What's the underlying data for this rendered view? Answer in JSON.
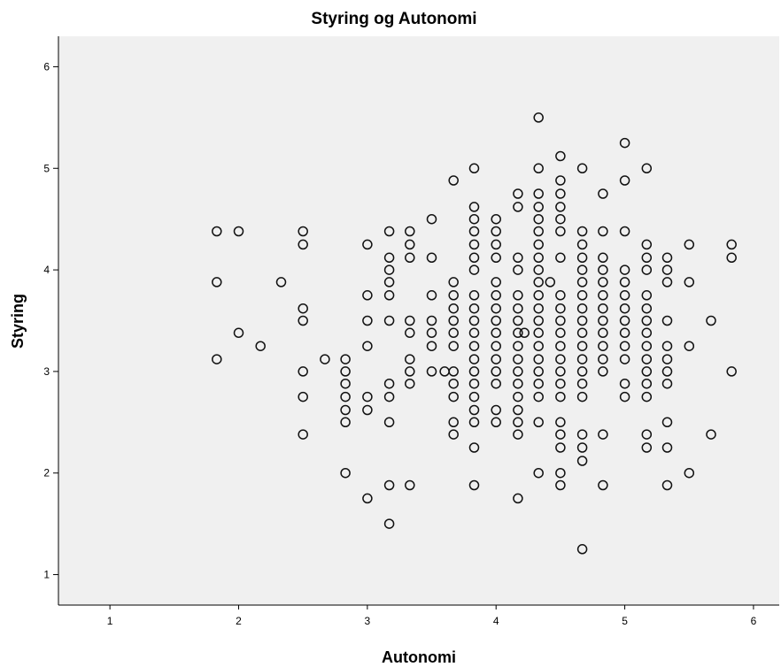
{
  "chart_data": {
    "type": "scatter",
    "title": "Styring og Autonomi",
    "xlabel": "Autonomi",
    "ylabel": "Styring",
    "xlim": [
      0.6,
      6.2
    ],
    "ylim": [
      0.7,
      6.3
    ],
    "xticks": [
      "1",
      "2",
      "3",
      "4",
      "5",
      "6"
    ],
    "yticks": [
      "1",
      "2",
      "3",
      "4",
      "5",
      "6"
    ],
    "grid": false,
    "colors": {
      "plot_bg": "#f0f0f0",
      "marker": "#111111"
    },
    "points": [
      [
        1.83,
        4.38
      ],
      [
        1.83,
        3.88
      ],
      [
        1.83,
        3.12
      ],
      [
        2.0,
        4.38
      ],
      [
        2.0,
        3.38
      ],
      [
        2.17,
        3.25
      ],
      [
        2.33,
        3.88
      ],
      [
        2.5,
        4.38
      ],
      [
        2.5,
        4.25
      ],
      [
        2.5,
        3.62
      ],
      [
        2.5,
        3.5
      ],
      [
        2.5,
        3.0
      ],
      [
        2.5,
        2.75
      ],
      [
        2.5,
        2.38
      ],
      [
        2.67,
        3.12
      ],
      [
        2.83,
        3.12
      ],
      [
        2.83,
        3.0
      ],
      [
        2.83,
        2.88
      ],
      [
        2.83,
        2.75
      ],
      [
        2.83,
        2.62
      ],
      [
        2.83,
        2.5
      ],
      [
        2.83,
        2.0
      ],
      [
        3.0,
        4.25
      ],
      [
        3.0,
        3.75
      ],
      [
        3.0,
        3.5
      ],
      [
        3.0,
        3.25
      ],
      [
        3.0,
        2.75
      ],
      [
        3.0,
        2.62
      ],
      [
        3.0,
        1.75
      ],
      [
        3.17,
        4.38
      ],
      [
        3.17,
        4.12
      ],
      [
        3.17,
        4.0
      ],
      [
        3.17,
        3.88
      ],
      [
        3.17,
        3.75
      ],
      [
        3.17,
        3.5
      ],
      [
        3.17,
        2.88
      ],
      [
        3.17,
        2.75
      ],
      [
        3.17,
        2.5
      ],
      [
        3.17,
        1.88
      ],
      [
        3.17,
        1.5
      ],
      [
        3.33,
        4.38
      ],
      [
        3.33,
        4.25
      ],
      [
        3.33,
        4.12
      ],
      [
        3.33,
        3.5
      ],
      [
        3.33,
        3.38
      ],
      [
        3.33,
        3.12
      ],
      [
        3.33,
        3.0
      ],
      [
        3.33,
        2.88
      ],
      [
        3.33,
        1.88
      ],
      [
        3.5,
        4.5
      ],
      [
        3.5,
        4.12
      ],
      [
        3.5,
        3.75
      ],
      [
        3.5,
        3.5
      ],
      [
        3.5,
        3.38
      ],
      [
        3.5,
        3.25
      ],
      [
        3.5,
        3.0
      ],
      [
        3.6,
        3.0
      ],
      [
        3.67,
        4.88
      ],
      [
        3.67,
        3.88
      ],
      [
        3.67,
        3.75
      ],
      [
        3.67,
        3.62
      ],
      [
        3.67,
        3.5
      ],
      [
        3.67,
        3.38
      ],
      [
        3.67,
        3.25
      ],
      [
        3.67,
        3.0
      ],
      [
        3.67,
        2.88
      ],
      [
        3.67,
        2.75
      ],
      [
        3.67,
        2.5
      ],
      [
        3.67,
        2.38
      ],
      [
        3.83,
        5.0
      ],
      [
        3.83,
        4.62
      ],
      [
        3.83,
        4.5
      ],
      [
        3.83,
        4.38
      ],
      [
        3.83,
        4.25
      ],
      [
        3.83,
        4.12
      ],
      [
        3.83,
        4.0
      ],
      [
        3.83,
        3.75
      ],
      [
        3.83,
        3.62
      ],
      [
        3.83,
        3.5
      ],
      [
        3.83,
        3.38
      ],
      [
        3.83,
        3.25
      ],
      [
        3.83,
        3.12
      ],
      [
        3.83,
        3.0
      ],
      [
        3.83,
        2.88
      ],
      [
        3.83,
        2.75
      ],
      [
        3.83,
        2.62
      ],
      [
        3.83,
        2.5
      ],
      [
        3.83,
        2.25
      ],
      [
        3.83,
        1.88
      ],
      [
        4.0,
        4.5
      ],
      [
        4.0,
        4.38
      ],
      [
        4.0,
        4.25
      ],
      [
        4.0,
        4.12
      ],
      [
        4.0,
        3.88
      ],
      [
        4.0,
        3.75
      ],
      [
        4.0,
        3.62
      ],
      [
        4.0,
        3.5
      ],
      [
        4.0,
        3.38
      ],
      [
        4.0,
        3.25
      ],
      [
        4.0,
        3.12
      ],
      [
        4.0,
        3.0
      ],
      [
        4.0,
        2.88
      ],
      [
        4.0,
        2.62
      ],
      [
        4.0,
        2.5
      ],
      [
        4.17,
        4.75
      ],
      [
        4.17,
        4.62
      ],
      [
        4.17,
        4.12
      ],
      [
        4.17,
        4.0
      ],
      [
        4.17,
        3.75
      ],
      [
        4.17,
        3.62
      ],
      [
        4.17,
        3.5
      ],
      [
        4.17,
        3.38
      ],
      [
        4.17,
        3.25
      ],
      [
        4.17,
        3.12
      ],
      [
        4.17,
        3.0
      ],
      [
        4.17,
        2.88
      ],
      [
        4.17,
        2.75
      ],
      [
        4.17,
        2.62
      ],
      [
        4.17,
        2.5
      ],
      [
        4.17,
        2.38
      ],
      [
        4.17,
        1.75
      ],
      [
        4.22,
        3.38
      ],
      [
        4.33,
        5.5
      ],
      [
        4.33,
        5.0
      ],
      [
        4.33,
        4.75
      ],
      [
        4.33,
        4.62
      ],
      [
        4.33,
        4.5
      ],
      [
        4.33,
        4.38
      ],
      [
        4.33,
        4.25
      ],
      [
        4.33,
        4.12
      ],
      [
        4.33,
        4.0
      ],
      [
        4.33,
        3.88
      ],
      [
        4.33,
        3.75
      ],
      [
        4.33,
        3.62
      ],
      [
        4.33,
        3.5
      ],
      [
        4.33,
        3.38
      ],
      [
        4.33,
        3.25
      ],
      [
        4.33,
        3.12
      ],
      [
        4.33,
        3.0
      ],
      [
        4.33,
        2.88
      ],
      [
        4.33,
        2.75
      ],
      [
        4.33,
        2.5
      ],
      [
        4.33,
        2.0
      ],
      [
        4.42,
        3.88
      ],
      [
        4.5,
        5.12
      ],
      [
        4.5,
        4.88
      ],
      [
        4.5,
        4.75
      ],
      [
        4.5,
        4.62
      ],
      [
        4.5,
        4.5
      ],
      [
        4.5,
        4.38
      ],
      [
        4.5,
        4.12
      ],
      [
        4.5,
        3.75
      ],
      [
        4.5,
        3.62
      ],
      [
        4.5,
        3.5
      ],
      [
        4.5,
        3.38
      ],
      [
        4.5,
        3.25
      ],
      [
        4.5,
        3.12
      ],
      [
        4.5,
        3.0
      ],
      [
        4.5,
        2.88
      ],
      [
        4.5,
        2.75
      ],
      [
        4.5,
        2.5
      ],
      [
        4.5,
        2.38
      ],
      [
        4.5,
        2.25
      ],
      [
        4.5,
        2.0
      ],
      [
        4.5,
        1.88
      ],
      [
        4.67,
        5.0
      ],
      [
        4.67,
        4.38
      ],
      [
        4.67,
        4.25
      ],
      [
        4.67,
        4.12
      ],
      [
        4.67,
        4.0
      ],
      [
        4.67,
        3.88
      ],
      [
        4.67,
        3.75
      ],
      [
        4.67,
        3.62
      ],
      [
        4.67,
        3.5
      ],
      [
        4.67,
        3.38
      ],
      [
        4.67,
        3.25
      ],
      [
        4.67,
        3.12
      ],
      [
        4.67,
        3.0
      ],
      [
        4.67,
        2.88
      ],
      [
        4.67,
        2.75
      ],
      [
        4.67,
        2.38
      ],
      [
        4.67,
        2.25
      ],
      [
        4.67,
        2.12
      ],
      [
        4.67,
        1.25
      ],
      [
        4.83,
        4.75
      ],
      [
        4.83,
        4.38
      ],
      [
        4.83,
        4.12
      ],
      [
        4.83,
        4.0
      ],
      [
        4.83,
        3.88
      ],
      [
        4.83,
        3.75
      ],
      [
        4.83,
        3.62
      ],
      [
        4.83,
        3.5
      ],
      [
        4.83,
        3.38
      ],
      [
        4.83,
        3.25
      ],
      [
        4.83,
        3.12
      ],
      [
        4.83,
        3.0
      ],
      [
        4.83,
        2.38
      ],
      [
        4.83,
        1.88
      ],
      [
        5.0,
        5.25
      ],
      [
        5.0,
        4.88
      ],
      [
        5.0,
        4.38
      ],
      [
        5.0,
        4.0
      ],
      [
        5.0,
        3.88
      ],
      [
        5.0,
        3.75
      ],
      [
        5.0,
        3.62
      ],
      [
        5.0,
        3.5
      ],
      [
        5.0,
        3.38
      ],
      [
        5.0,
        3.25
      ],
      [
        5.0,
        3.12
      ],
      [
        5.0,
        2.88
      ],
      [
        5.0,
        2.75
      ],
      [
        5.17,
        5.0
      ],
      [
        5.17,
        4.25
      ],
      [
        5.17,
        4.12
      ],
      [
        5.17,
        4.0
      ],
      [
        5.17,
        3.75
      ],
      [
        5.17,
        3.62
      ],
      [
        5.17,
        3.5
      ],
      [
        5.17,
        3.38
      ],
      [
        5.17,
        3.25
      ],
      [
        5.17,
        3.12
      ],
      [
        5.17,
        3.0
      ],
      [
        5.17,
        2.88
      ],
      [
        5.17,
        2.75
      ],
      [
        5.17,
        2.38
      ],
      [
        5.17,
        2.25
      ],
      [
        5.33,
        4.12
      ],
      [
        5.33,
        4.0
      ],
      [
        5.33,
        3.88
      ],
      [
        5.33,
        3.5
      ],
      [
        5.33,
        3.25
      ],
      [
        5.33,
        3.12
      ],
      [
        5.33,
        3.0
      ],
      [
        5.33,
        2.88
      ],
      [
        5.33,
        2.5
      ],
      [
        5.33,
        2.25
      ],
      [
        5.33,
        1.88
      ],
      [
        5.5,
        4.25
      ],
      [
        5.5,
        3.88
      ],
      [
        5.5,
        3.25
      ],
      [
        5.5,
        2.0
      ],
      [
        5.67,
        3.5
      ],
      [
        5.67,
        2.38
      ],
      [
        5.83,
        4.25
      ],
      [
        5.83,
        4.12
      ],
      [
        5.83,
        3.0
      ]
    ]
  }
}
